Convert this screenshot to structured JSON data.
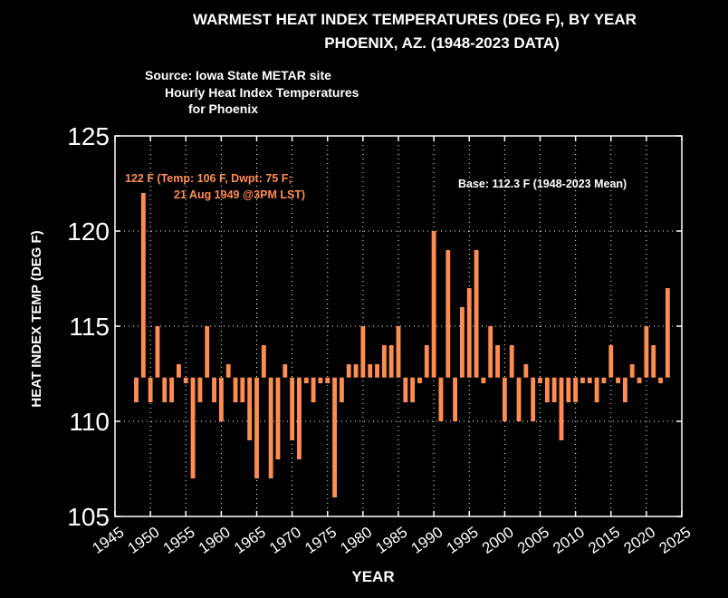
{
  "chart_data": {
    "type": "bar",
    "title": "WARMEST HEAT INDEX TEMPERATURES (DEG F), BY YEAR",
    "subtitle": "PHOENIX, AZ. (1948-2023 DATA)",
    "source_lines": [
      "Source: Iowa State METAR site",
      "Hourly Heat Index Temperatures",
      "for Phoenix"
    ],
    "xlabel": "YEAR",
    "ylabel": "HEAT INDEX TEMP (DEG F)",
    "xlim": [
      1945,
      2025
    ],
    "ylim": [
      105,
      125
    ],
    "xticks": [
      "1945",
      "1950",
      "1955",
      "1960",
      "1965",
      "1970",
      "1975",
      "1980",
      "1985",
      "1990",
      "1995",
      "2000",
      "2005",
      "2010",
      "2015",
      "2020",
      "2025"
    ],
    "yticks": [
      "105",
      "110",
      "115",
      "120",
      "125"
    ],
    "grid": true,
    "base": 112.3,
    "base_label": "Base: 112.3 F (1948-2023 Mean)",
    "record_label_line1": "122 F  (Temp: 106 F, Dwpt: 75 F;",
    "record_label_line2": "21 Aug 1949 @3PM LST)",
    "bar_color": "#FF8C50",
    "x": [
      1948,
      1949,
      1950,
      1951,
      1952,
      1953,
      1954,
      1955,
      1956,
      1957,
      1958,
      1959,
      1960,
      1961,
      1962,
      1963,
      1964,
      1965,
      1966,
      1967,
      1968,
      1969,
      1970,
      1971,
      1972,
      1973,
      1974,
      1975,
      1976,
      1977,
      1978,
      1979,
      1980,
      1981,
      1982,
      1983,
      1984,
      1985,
      1986,
      1987,
      1988,
      1989,
      1990,
      1991,
      1992,
      1993,
      1994,
      1995,
      1996,
      1997,
      1998,
      1999,
      2000,
      2001,
      2002,
      2003,
      2004,
      2005,
      2006,
      2007,
      2008,
      2009,
      2010,
      2011,
      2012,
      2013,
      2014,
      2015,
      2016,
      2017,
      2018,
      2019,
      2020,
      2021,
      2022,
      2023
    ],
    "values": [
      111,
      122,
      111,
      115,
      111,
      111,
      113,
      112,
      107,
      111,
      115,
      111,
      110,
      113,
      111,
      111,
      109,
      107,
      114,
      107,
      108,
      113,
      109,
      108,
      112,
      111,
      112,
      112,
      106,
      111,
      113,
      113,
      115,
      113,
      113,
      114,
      114,
      115,
      111,
      111,
      112,
      114,
      120,
      110,
      119,
      110,
      116,
      117,
      119,
      112,
      115,
      114,
      110,
      114,
      110,
      113,
      110,
      112,
      111,
      111,
      109,
      111,
      111,
      112,
      112,
      111,
      112,
      114,
      112,
      111,
      113,
      112,
      115,
      114,
      112,
      117
    ]
  }
}
